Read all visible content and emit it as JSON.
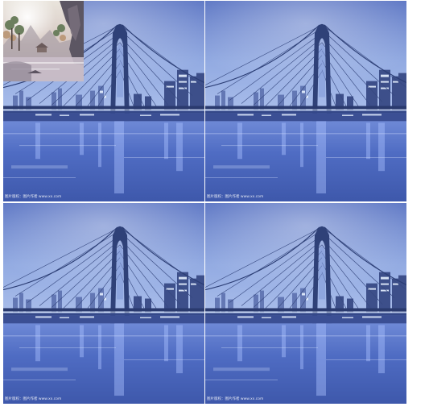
{
  "collage": {
    "tiles": [
      {
        "caption": "图片版权：图片作者 www.xx.com"
      },
      {
        "caption": "图片版权：图片作者 www.xx.com"
      },
      {
        "caption": "图片版权：图片作者 www.xx.com"
      },
      {
        "caption": "图片版权：图片作者 www.xx.com"
      }
    ]
  },
  "colors": {
    "sky_top": "#5f79c6",
    "sky_mid": "#8ea7e0",
    "water": "#4d69c0",
    "bridge": "#2b3d74",
    "city_light": "#e6f0ff"
  }
}
